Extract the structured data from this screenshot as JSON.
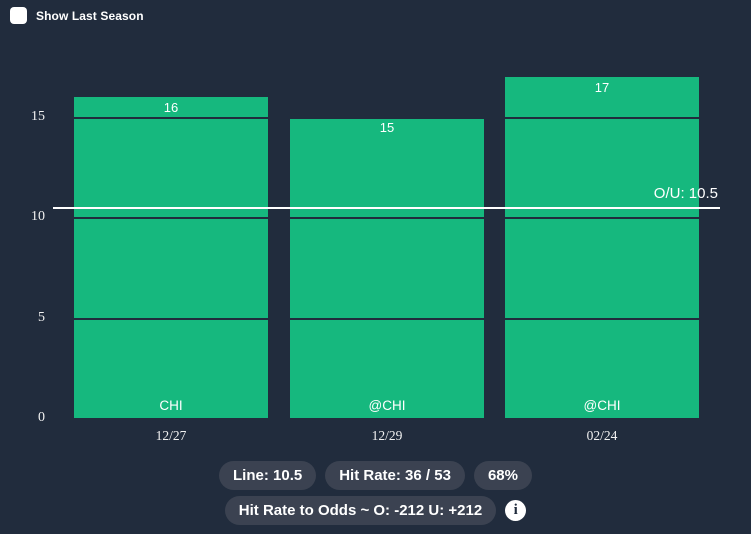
{
  "colors": {
    "background": "#212c3d",
    "bar": "#16b87e",
    "badge_background": "#3b4251",
    "over_under_line": "#ffffff",
    "text": "#ffffff"
  },
  "controls": {
    "show_last_season": {
      "label": "Show Last Season",
      "checked": false
    }
  },
  "chart_data": {
    "type": "bar",
    "categories": [
      "12/27",
      "12/29",
      "02/24"
    ],
    "values": [
      16,
      15,
      17
    ],
    "bar_labels": [
      "CHI",
      "@CHI",
      "@CHI"
    ],
    "yticks": [
      0,
      5,
      10,
      15
    ],
    "ylim": [
      0,
      17.4
    ],
    "grid": "horizontal",
    "line": {
      "value": 10.5,
      "label": "O/U: 10.5"
    }
  },
  "footer": {
    "badges_row1": [
      "Line: 10.5",
      "Hit Rate: 36 / 53",
      "68%"
    ],
    "badges_row2": [
      "Hit Rate to Odds ~ O: -212 U: +212"
    ],
    "info_icon": "info-icon",
    "info_glyph": "i"
  }
}
